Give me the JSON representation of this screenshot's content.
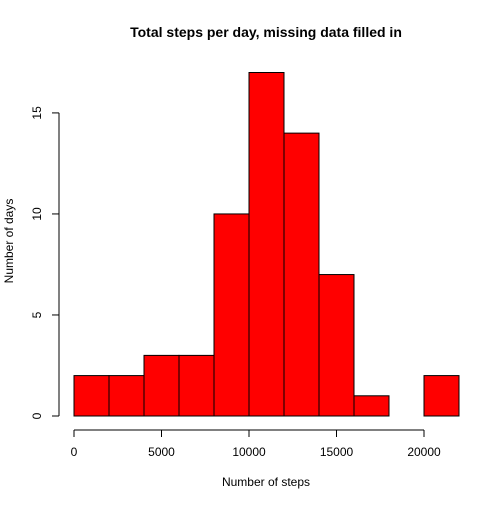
{
  "chart_data": {
    "type": "bar",
    "title": "Total steps per day, missing data filled in",
    "xlabel": "Number of steps",
    "ylabel": "Number of days",
    "bar_color": "#FF0000",
    "border_color": "#000000",
    "bins": [
      {
        "from": 0,
        "to": 2000,
        "count": 2
      },
      {
        "from": 2000,
        "to": 4000,
        "count": 2
      },
      {
        "from": 4000,
        "to": 6000,
        "count": 3
      },
      {
        "from": 6000,
        "to": 8000,
        "count": 3
      },
      {
        "from": 8000,
        "to": 10000,
        "count": 10
      },
      {
        "from": 10000,
        "to": 12000,
        "count": 17
      },
      {
        "from": 12000,
        "to": 14000,
        "count": 14
      },
      {
        "from": 14000,
        "to": 16000,
        "count": 7
      },
      {
        "from": 16000,
        "to": 18000,
        "count": 1
      },
      {
        "from": 18000,
        "to": 20000,
        "count": 0
      },
      {
        "from": 20000,
        "to": 22000,
        "count": 2
      }
    ],
    "xlim": [
      0,
      22000
    ],
    "ylim": [
      0,
      17
    ],
    "x_ticks": [
      0,
      5000,
      10000,
      15000,
      20000
    ],
    "y_ticks": [
      0,
      5,
      10,
      15
    ],
    "grid": false,
    "legend": "none"
  }
}
